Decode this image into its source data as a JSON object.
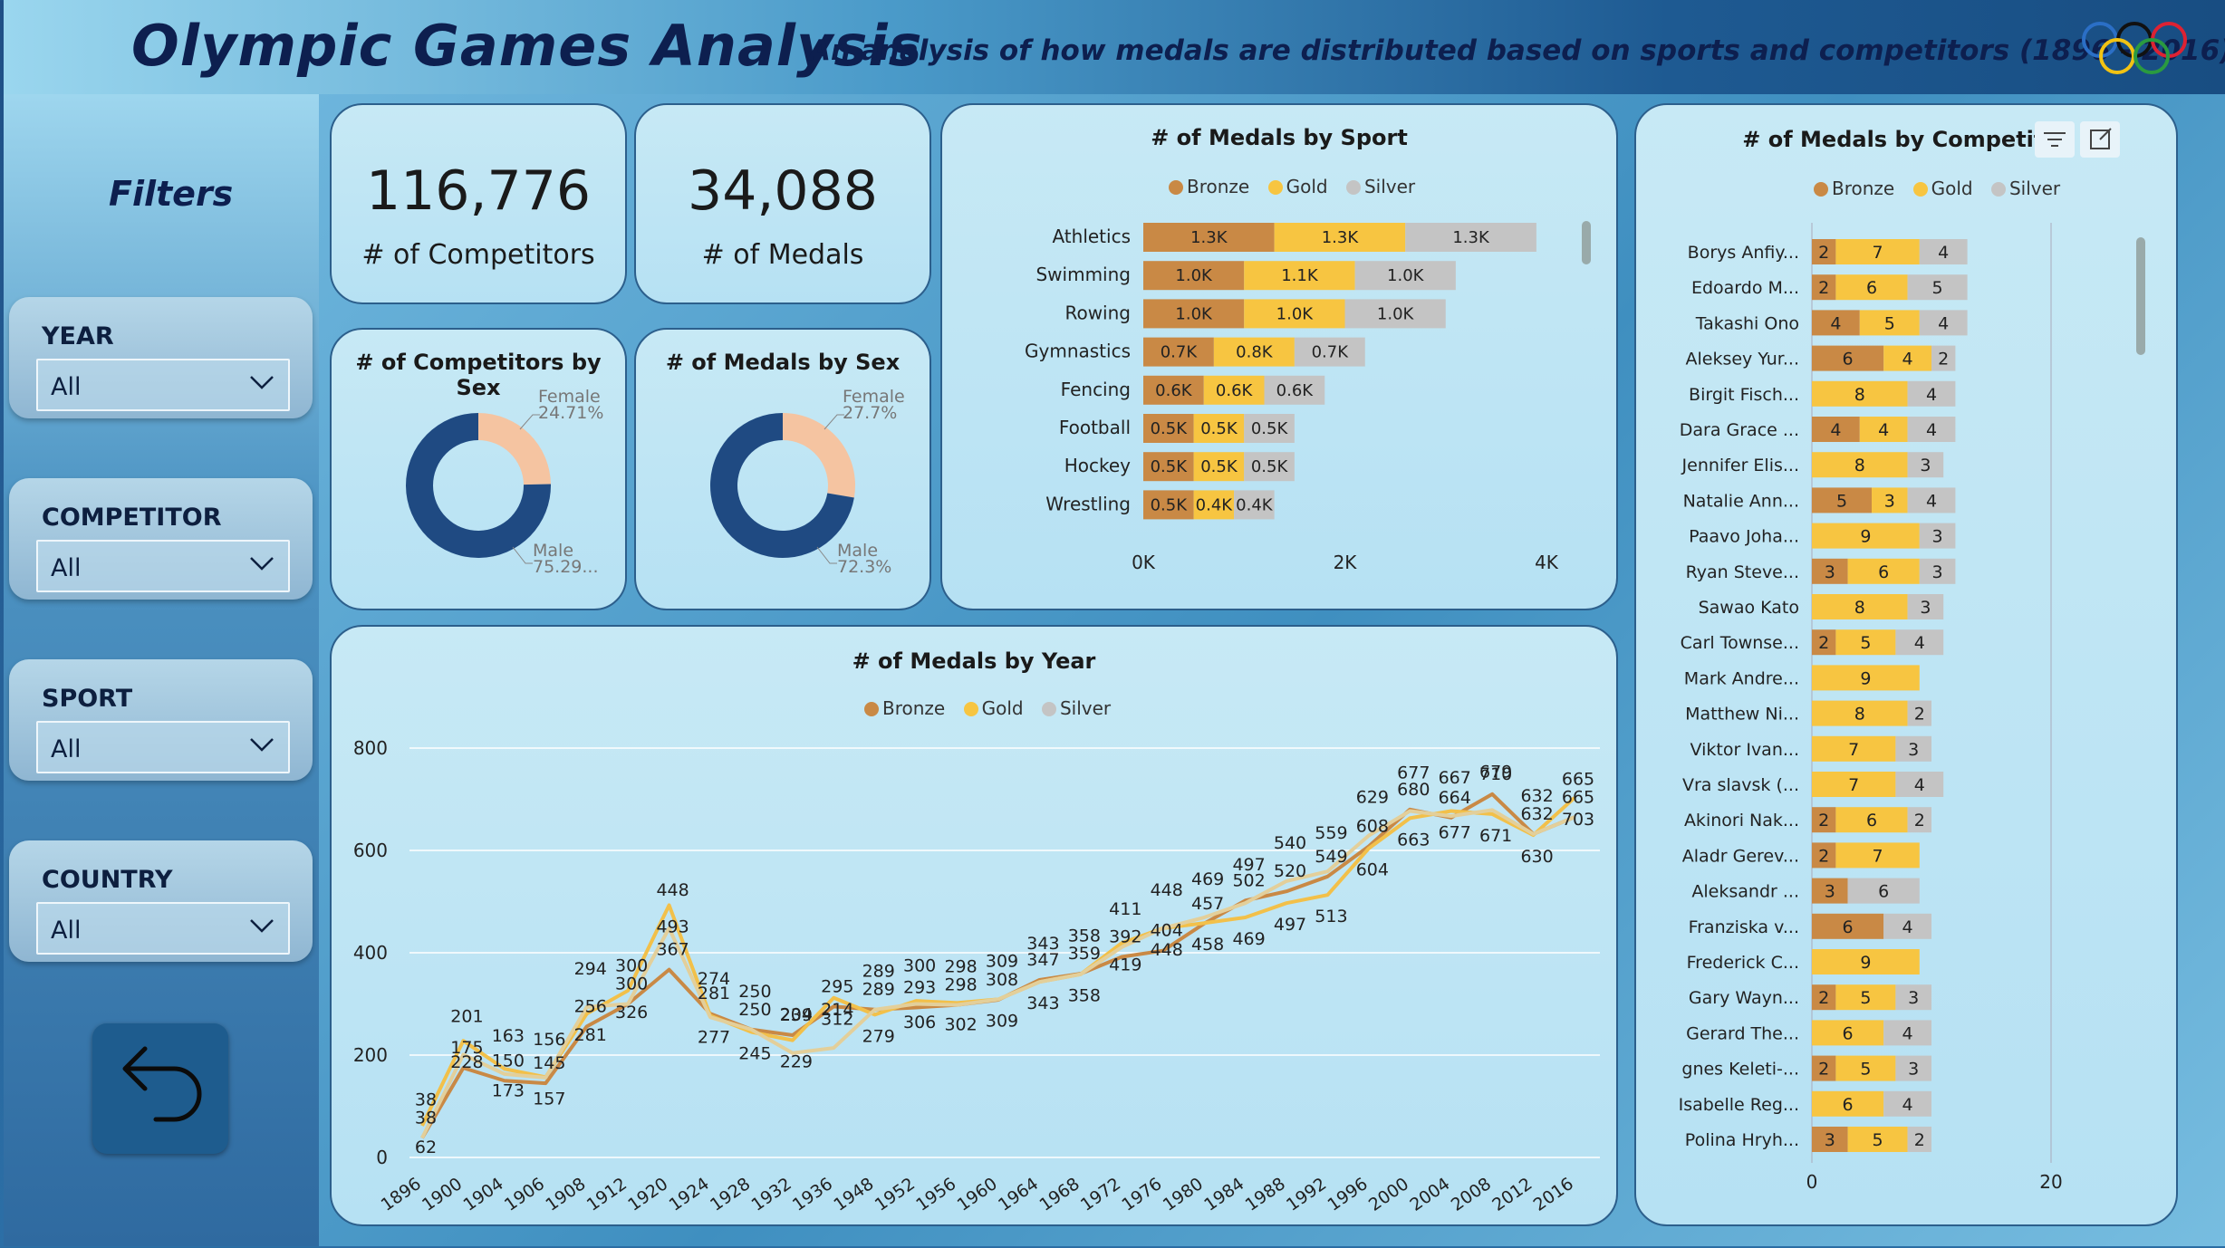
{
  "header": {
    "title": "Olympic Games Analysis",
    "subtitle": "An analysis of how medals are distributed based on sports and competitors (1896 - 2016)",
    "logo": "olympic-rings"
  },
  "sidebar": {
    "title": "Filters",
    "filters": [
      {
        "label": "YEAR",
        "value": "All"
      },
      {
        "label": "COMPETITOR",
        "value": "All"
      },
      {
        "label": "SPORT",
        "value": "All"
      },
      {
        "label": "COUNTRY",
        "value": "All"
      }
    ],
    "back_icon": "back-arrow-icon"
  },
  "kpis": {
    "competitors": {
      "value": "116,776",
      "label": "# of Competitors"
    },
    "medals": {
      "value": "34,088",
      "label": "# of Medals"
    }
  },
  "colors": {
    "bronze": "#c98945",
    "gold": "#f7c541",
    "silver": "#c4c4c4",
    "male": "#1f4a82",
    "female": "#f5c4a1"
  },
  "legend": [
    "Bronze",
    "Gold",
    "Silver"
  ],
  "chart_data": [
    {
      "id": "competitors_by_sex",
      "type": "pie",
      "title": "# of Competitors by Sex",
      "slices": [
        {
          "name": "Female",
          "value": 24.71,
          "label": "24.71%"
        },
        {
          "name": "Male",
          "value": 75.29,
          "label": "75.29..."
        }
      ]
    },
    {
      "id": "medals_by_sex",
      "type": "pie",
      "title": "# of Medals by Sex",
      "slices": [
        {
          "name": "Female",
          "value": 27.7,
          "label": "27.7%"
        },
        {
          "name": "Male",
          "value": 72.3,
          "label": "72.3%"
        }
      ]
    },
    {
      "id": "medals_by_sport",
      "type": "bar",
      "orientation": "horizontal",
      "stacked": true,
      "title": "# of Medals by Sport",
      "categories": [
        "Athletics",
        "Swimming",
        "Rowing",
        "Gymnastics",
        "Fencing",
        "Football",
        "Hockey",
        "Wrestling"
      ],
      "series": [
        {
          "name": "Bronze",
          "values": [
            1300,
            1000,
            1000,
            700,
            600,
            500,
            500,
            500
          ],
          "labels": [
            "1.3K",
            "1.0K",
            "1.0K",
            "0.7K",
            "0.6K",
            "0.5K",
            "0.5K",
            "0.5K"
          ]
        },
        {
          "name": "Gold",
          "values": [
            1300,
            1100,
            1000,
            800,
            600,
            500,
            500,
            400
          ],
          "labels": [
            "1.3K",
            "1.1K",
            "1.0K",
            "0.8K",
            "0.6K",
            "0.5K",
            "0.5K",
            "0.4K"
          ]
        },
        {
          "name": "Silver",
          "values": [
            1300,
            1000,
            1000,
            700,
            600,
            500,
            500,
            400
          ],
          "labels": [
            "1.3K",
            "1.0K",
            "1.0K",
            "0.7K",
            "0.6K",
            "0.5K",
            "0.5K",
            "0.4K"
          ]
        }
      ],
      "x_ticks": [
        "0K",
        "2K",
        "4K"
      ],
      "xlim": [
        0,
        4000
      ]
    },
    {
      "id": "medals_by_competitor",
      "type": "bar",
      "orientation": "horizontal",
      "stacked": true,
      "title": "# of Medals by Competitor",
      "categories": [
        "Borys Anfiy...",
        "Edoardo M...",
        "Takashi Ono",
        "Aleksey Yur...",
        "Birgit Fisch...",
        "Dara Grace ...",
        "Jennifer Elis...",
        "Natalie Ann...",
        "Paavo Joha...",
        "Ryan Steve...",
        "Sawao Kato",
        "Carl Townse...",
        "Mark Andre...",
        "Matthew Ni...",
        "Viktor Ivan...",
        "Vra slavsk (...",
        "Akinori Nak...",
        "Aladr Gerev...",
        "Aleksandr ...",
        "Franziska v...",
        "Frederick C...",
        "Gary Wayn...",
        "Gerard The...",
        "gnes Keleti-...",
        "Isabelle Reg...",
        "Polina Hryh..."
      ],
      "series": [
        {
          "name": "Bronze",
          "values": [
            2,
            2,
            4,
            6,
            0,
            4,
            0,
            5,
            0,
            3,
            0,
            2,
            0,
            0,
            0,
            0,
            2,
            2,
            3,
            6,
            0,
            2,
            0,
            2,
            0,
            3
          ]
        },
        {
          "name": "Gold",
          "values": [
            7,
            6,
            5,
            4,
            8,
            4,
            8,
            3,
            9,
            6,
            8,
            5,
            9,
            8,
            7,
            7,
            6,
            7,
            0,
            0,
            9,
            5,
            6,
            5,
            6,
            5
          ]
        },
        {
          "name": "Silver",
          "values": [
            4,
            5,
            4,
            2,
            4,
            4,
            3,
            4,
            3,
            3,
            3,
            4,
            0,
            2,
            3,
            4,
            2,
            0,
            6,
            4,
            0,
            3,
            4,
            3,
            4,
            2
          ]
        }
      ],
      "x_ticks": [
        "0",
        "20"
      ],
      "xlim": [
        0,
        20
      ]
    },
    {
      "id": "medals_by_year",
      "type": "line",
      "title": "# of Medals by Year",
      "x": [
        "1896",
        "1900",
        "1904",
        "1906",
        "1908",
        "1912",
        "1920",
        "1924",
        "1928",
        "1932",
        "1936",
        "1948",
        "1952",
        "1956",
        "1960",
        "1964",
        "1968",
        "1972",
        "1976",
        "1980",
        "1984",
        "1988",
        "1992",
        "1996",
        "2000",
        "2004",
        "2008",
        "2012",
        "2016"
      ],
      "series": [
        {
          "name": "Bronze",
          "values": [
            38,
            175,
            150,
            145,
            256,
            300,
            367,
            281,
            250,
            239,
            295,
            289,
            293,
            298,
            308,
            347,
            359,
            392,
            404,
            457,
            502,
            520,
            549,
            608,
            680,
            664,
            710,
            632,
            665
          ]
        },
        {
          "name": "Gold",
          "values": [
            62,
            228,
            173,
            157,
            281,
            326,
            493,
            277,
            245,
            229,
            312,
            279,
            306,
            302,
            309,
            343,
            358,
            419,
            448,
            458,
            469,
            497,
            513,
            604,
            663,
            677,
            671,
            630,
            703
          ]
        },
        {
          "name": "Silver",
          "values": [
            38,
            201,
            163,
            156,
            294,
            300,
            448,
            274,
            250,
            204,
            214,
            289,
            300,
            298,
            309,
            343,
            358,
            411,
            448,
            469,
            497,
            540,
            559,
            629,
            677,
            667,
            679,
            632,
            665
          ]
        }
      ],
      "y_ticks": [
        "0",
        "200",
        "400",
        "600",
        "800"
      ],
      "ylim": [
        0,
        800
      ]
    }
  ]
}
